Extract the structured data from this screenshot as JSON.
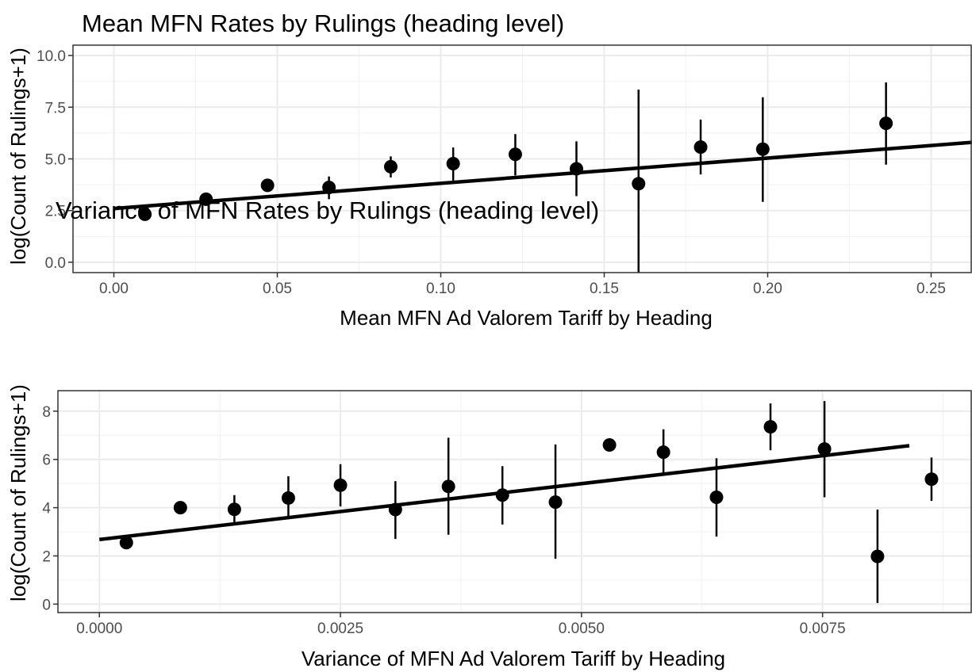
{
  "chart_data": [
    {
      "type": "scatter",
      "title": "Mean MFN Rates by Rulings (heading level)",
      "xlabel": "Mean MFN Ad Valorem Tariff by Heading",
      "ylabel": "log(Count of Rulings+1)",
      "xlim": [
        -0.0125,
        0.2625
      ],
      "ylim": [
        -0.5,
        10.5
      ],
      "xticks": [
        0,
        0.05,
        0.1,
        0.15,
        0.2,
        0.25
      ],
      "xtick_labels": [
        "0.00",
        "0.05",
        "0.10",
        "0.15",
        "0.20",
        "0.25"
      ],
      "yticks": [
        0,
        2.5,
        5,
        7.5,
        10
      ],
      "ytick_labels": [
        "0.0",
        "2.5",
        "5.0",
        "7.5",
        "10.0"
      ],
      "grid": true,
      "legend": "none",
      "points": [
        {
          "x": 0.0095,
          "y": 2.32,
          "ymin": 2.32,
          "ymax": 2.32
        },
        {
          "x": 0.0282,
          "y": 3.05,
          "ymin": 3.05,
          "ymax": 3.05
        },
        {
          "x": 0.047,
          "y": 3.72,
          "ymin": 3.72,
          "ymax": 3.72
        },
        {
          "x": 0.0658,
          "y": 3.62,
          "ymin": 3.05,
          "ymax": 4.15
        },
        {
          "x": 0.0847,
          "y": 4.62,
          "ymin": 4.1,
          "ymax": 5.12
        },
        {
          "x": 0.1038,
          "y": 4.77,
          "ymin": 3.95,
          "ymax": 5.55
        },
        {
          "x": 0.1228,
          "y": 5.22,
          "ymin": 4.2,
          "ymax": 6.2
        },
        {
          "x": 0.1415,
          "y": 4.52,
          "ymin": 3.2,
          "ymax": 5.85
        },
        {
          "x": 0.1605,
          "y": 3.8,
          "ymin": -0.5,
          "ymax": 8.35
        },
        {
          "x": 0.1795,
          "y": 5.57,
          "ymin": 4.25,
          "ymax": 6.9
        },
        {
          "x": 0.1985,
          "y": 5.47,
          "ymin": 2.92,
          "ymax": 7.98
        },
        {
          "x": 0.2362,
          "y": 6.72,
          "ymin": 4.72,
          "ymax": 8.7
        }
      ],
      "fit_line": {
        "x": [
          0,
          0.2625
        ],
        "y": [
          2.6,
          5.8
        ]
      }
    },
    {
      "type": "scatter",
      "title": "Variance of MFN Rates by Rulings (heading level)",
      "xlabel": "Variance of MFN Ad Valorem Tariff by Heading",
      "ylabel": "log(Count of Rulings+1)",
      "xlim": [
        -0.00043,
        0.00905
      ],
      "ylim": [
        -0.35,
        8.85
      ],
      "xticks": [
        0,
        0.0025,
        0.005,
        0.0075
      ],
      "xtick_labels": [
        "0.0000",
        "0.0025",
        "0.0050",
        "0.0075"
      ],
      "yticks": [
        0,
        2,
        4,
        6,
        8
      ],
      "ytick_labels": [
        "0",
        "2",
        "4",
        "6",
        "8"
      ],
      "grid": true,
      "legend": "none",
      "points": [
        {
          "x": 0.00028,
          "y": 2.55,
          "ymin": 2.55,
          "ymax": 2.55
        },
        {
          "x": 0.00084,
          "y": 4.0,
          "ymin": 4.0,
          "ymax": 4.0
        },
        {
          "x": 0.0014,
          "y": 3.93,
          "ymin": 3.35,
          "ymax": 4.52
        },
        {
          "x": 0.00196,
          "y": 4.4,
          "ymin": 3.58,
          "ymax": 5.3
        },
        {
          "x": 0.0025,
          "y": 4.93,
          "ymin": 4.05,
          "ymax": 5.8
        },
        {
          "x": 0.00307,
          "y": 3.92,
          "ymin": 2.7,
          "ymax": 5.1
        },
        {
          "x": 0.00362,
          "y": 4.88,
          "ymin": 2.88,
          "ymax": 6.9
        },
        {
          "x": 0.00418,
          "y": 4.52,
          "ymin": 3.3,
          "ymax": 5.72
        },
        {
          "x": 0.00473,
          "y": 4.23,
          "ymin": 1.88,
          "ymax": 6.62
        },
        {
          "x": 0.00529,
          "y": 6.6,
          "ymin": 6.6,
          "ymax": 6.6
        },
        {
          "x": 0.00585,
          "y": 6.3,
          "ymin": 5.38,
          "ymax": 7.25
        },
        {
          "x": 0.0064,
          "y": 4.43,
          "ymin": 2.8,
          "ymax": 6.05
        },
        {
          "x": 0.00696,
          "y": 7.35,
          "ymin": 6.38,
          "ymax": 8.32
        },
        {
          "x": 0.00752,
          "y": 6.43,
          "ymin": 4.43,
          "ymax": 8.42
        },
        {
          "x": 0.00807,
          "y": 1.98,
          "ymin": 0.05,
          "ymax": 3.92
        },
        {
          "x": 0.00863,
          "y": 5.18,
          "ymin": 4.28,
          "ymax": 6.08
        }
      ],
      "fit_line": {
        "x": [
          0,
          0.0084
        ],
        "y": [
          2.68,
          6.57
        ]
      }
    }
  ]
}
